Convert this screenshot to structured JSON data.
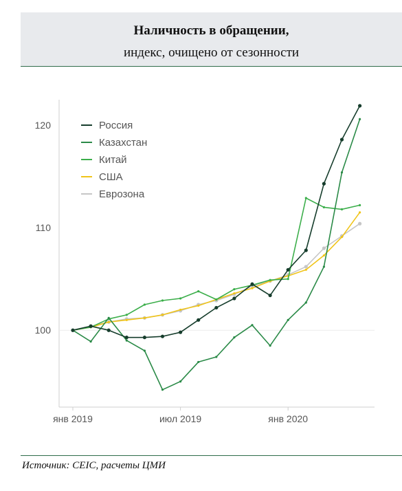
{
  "header": {
    "title": "Наличность в обращении,",
    "subtitle": "индекс, очищено от сезонности"
  },
  "footer": {
    "source": "Источник: CEIC, расчеты ЦМИ"
  },
  "chart_data": {
    "type": "line",
    "x": [
      "2019-01",
      "2019-02",
      "2019-03",
      "2019-04",
      "2019-05",
      "2019-06",
      "2019-07",
      "2019-08",
      "2019-09",
      "2019-10",
      "2019-11",
      "2019-12",
      "2020-01",
      "2020-02",
      "2020-03",
      "2020-04",
      "2020-05",
      "2020-06"
    ],
    "x_tick_labels": [
      "янв 2019",
      "июл 2019",
      "янв 2020"
    ],
    "x_tick_values": [
      "2019-01",
      "2019-07",
      "2020-01"
    ],
    "y_tick_labels": [
      "100",
      "110",
      "120"
    ],
    "ylim": [
      92.5,
      123.5
    ],
    "legend_position": "top-left",
    "grid": false,
    "series": [
      {
        "name": "Россия",
        "color": "#163d2c",
        "markers": true,
        "values": [
          100.0,
          100.4,
          100.0,
          99.3,
          99.3,
          99.4,
          99.8,
          101.0,
          102.2,
          103.1,
          104.5,
          103.4,
          105.9,
          107.8,
          114.3,
          118.6,
          121.9,
          null
        ]
      },
      {
        "name": "Казахстан",
        "color": "#2a8a47",
        "markers": false,
        "values": [
          100.0,
          98.9,
          101.2,
          99.0,
          98.0,
          94.2,
          95.0,
          96.9,
          97.4,
          99.3,
          100.5,
          98.5,
          101.0,
          102.7,
          106.2,
          115.4,
          120.6,
          null
        ]
      },
      {
        "name": "Китай",
        "color": "#3bae4a",
        "markers": false,
        "values": [
          100.0,
          100.3,
          101.1,
          101.5,
          102.5,
          102.9,
          103.1,
          103.8,
          103.0,
          104.0,
          104.4,
          104.9,
          105.0,
          112.9,
          112.0,
          111.8,
          112.2,
          null
        ]
      },
      {
        "name": "США",
        "color": "#f0c419",
        "markers": false,
        "values": [
          100.0,
          100.3,
          100.8,
          101.0,
          101.2,
          101.5,
          102.0,
          102.4,
          103.0,
          103.6,
          104.1,
          104.8,
          105.3,
          105.9,
          107.3,
          109.1,
          111.5,
          null
        ]
      },
      {
        "name": "Еврозона",
        "color": "#c6c6c6",
        "markers": true,
        "values": [
          100.0,
          100.4,
          100.8,
          101.1,
          101.2,
          101.5,
          101.9,
          102.5,
          102.9,
          103.5,
          104.3,
          104.8,
          105.4,
          106.2,
          108.0,
          109.2,
          110.4,
          null
        ]
      }
    ]
  }
}
